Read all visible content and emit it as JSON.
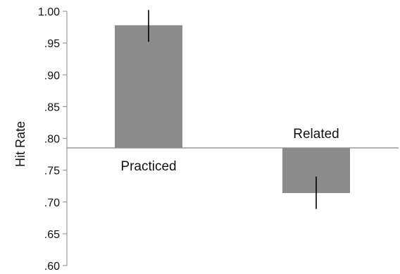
{
  "chart_data": {
    "type": "bar",
    "title": "",
    "xlabel": "",
    "ylabel": "Hit Rate",
    "ylim": [
      0.6,
      1.0
    ],
    "baseline": 0.785,
    "yticks": [
      1.0,
      0.95,
      0.9,
      0.85,
      0.8,
      0.75,
      0.7,
      0.65,
      0.6
    ],
    "ytick_labels": [
      "1.00",
      ".95",
      ".90",
      ".85",
      ".80",
      ".75",
      ".70",
      ".65",
      ".60"
    ],
    "categories": [
      "Practiced",
      "Related"
    ],
    "values": [
      0.978,
      0.714
    ],
    "error_bars": [
      {
        "low": 0.952,
        "high": 1.002
      },
      {
        "low": 0.689,
        "high": 0.74
      }
    ],
    "grid": false,
    "legend": "none"
  },
  "colors": {
    "bar": "#8c8c8c",
    "axis": "#9a9a9a",
    "baseline": "#9a9a9a",
    "error_bar": "#000000",
    "text": "#111111"
  }
}
